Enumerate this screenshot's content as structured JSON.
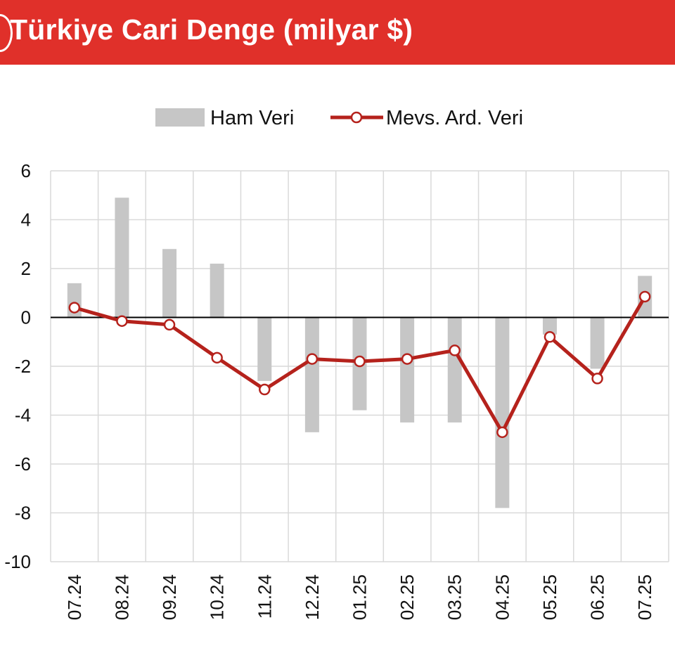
{
  "header": {
    "title": "Türkiye Cari Denge (milyar $)",
    "color": "#e0302a"
  },
  "chart_data": {
    "type": "bar",
    "title": "Türkiye Cari Denge (milyar $)",
    "xlabel": "",
    "ylabel": "",
    "categories": [
      "07.24",
      "08.24",
      "09.24",
      "10.24",
      "11.24",
      "12.24",
      "01.25",
      "02.25",
      "03.25",
      "04.25",
      "05.25",
      "06.25",
      "07.25"
    ],
    "ylim": [
      -10,
      6
    ],
    "yticks": [
      6,
      4,
      2,
      0,
      -2,
      -4,
      -6,
      -8,
      -10
    ],
    "grid": true,
    "legend_position": "top-center",
    "series": [
      {
        "name": "Ham Veri",
        "type": "bar",
        "color": "#c6c6c6",
        "values": [
          1.4,
          4.9,
          2.8,
          2.2,
          -2.6,
          -4.7,
          -3.8,
          -4.3,
          -4.3,
          -7.8,
          -0.7,
          -2.1,
          1.7
        ]
      },
      {
        "name": "Mevs. Ard. Veri",
        "type": "line",
        "color": "#b5221c",
        "values": [
          0.4,
          -0.15,
          -0.3,
          -1.65,
          -2.95,
          -1.7,
          -1.8,
          -1.7,
          -1.35,
          -4.7,
          -0.8,
          -2.5,
          0.85
        ]
      }
    ]
  }
}
